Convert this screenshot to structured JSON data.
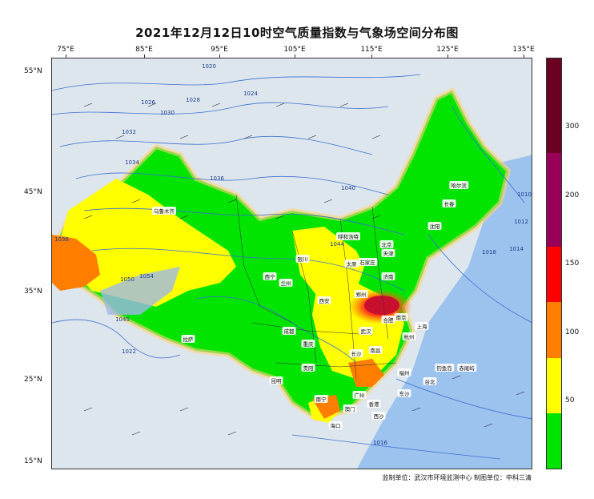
{
  "title": "2021年12月12日10时空气质量指数与气象场空间分布图",
  "axes": {
    "longitudes": [
      "75°E",
      "85°E",
      "95°E",
      "105°E",
      "115°E",
      "125°E",
      "135°E"
    ],
    "latitudes": [
      "55°N",
      "45°N",
      "35°N",
      "25°N",
      "15°N"
    ]
  },
  "colorbar": {
    "ticks": [
      "300",
      "200",
      "150",
      "100",
      "50"
    ],
    "colors": [
      "#6b0020",
      "#990057",
      "#ff0000",
      "#ff7e00",
      "#ffff00",
      "#00e400"
    ]
  },
  "footer": "监制单位：武汉市环境监测中心  制图单位：中科三清",
  "cities": [
    {
      "name": "乌鲁木齐"
    },
    {
      "name": "哈尔滨"
    },
    {
      "name": "长春"
    },
    {
      "name": "沈阳"
    },
    {
      "name": "呼和浩特"
    },
    {
      "name": "北京"
    },
    {
      "name": "天津"
    },
    {
      "name": "太原"
    },
    {
      "name": "石家庄"
    },
    {
      "name": "济南"
    },
    {
      "name": "银川"
    },
    {
      "name": "西宁"
    },
    {
      "name": "兰州"
    },
    {
      "name": "西安"
    },
    {
      "name": "郑州"
    },
    {
      "name": "合肥"
    },
    {
      "name": "南京"
    },
    {
      "name": "上海"
    },
    {
      "name": "武汉"
    },
    {
      "name": "杭州"
    },
    {
      "name": "成都"
    },
    {
      "name": "重庆"
    },
    {
      "name": "长沙"
    },
    {
      "name": "南昌"
    },
    {
      "name": "贵阳"
    },
    {
      "name": "昆明"
    },
    {
      "name": "福州"
    },
    {
      "name": "台北"
    },
    {
      "name": "广州"
    },
    {
      "name": "南宁"
    },
    {
      "name": "香港"
    },
    {
      "name": "澳门"
    },
    {
      "name": "海口"
    },
    {
      "name": "拉萨"
    },
    {
      "name": "钓鱼岛"
    },
    {
      "name": "赤尾屿"
    },
    {
      "name": "东沙"
    },
    {
      "name": "西沙"
    }
  ],
  "isobar_labels": [
    {
      "text": "1020"
    },
    {
      "text": "1024"
    },
    {
      "text": "1026"
    },
    {
      "text": "1028"
    },
    {
      "text": "1030"
    },
    {
      "text": "1032"
    },
    {
      "text": "1034"
    },
    {
      "text": "1036"
    },
    {
      "text": "1038"
    },
    {
      "text": "1040"
    },
    {
      "text": "1044"
    },
    {
      "text": "1045"
    },
    {
      "text": "1050"
    },
    {
      "text": "1054"
    },
    {
      "text": "1022"
    },
    {
      "text": "1018"
    },
    {
      "text": "1016"
    },
    {
      "text": "1014"
    },
    {
      "text": "1010"
    },
    {
      "text": "1012"
    }
  ]
}
